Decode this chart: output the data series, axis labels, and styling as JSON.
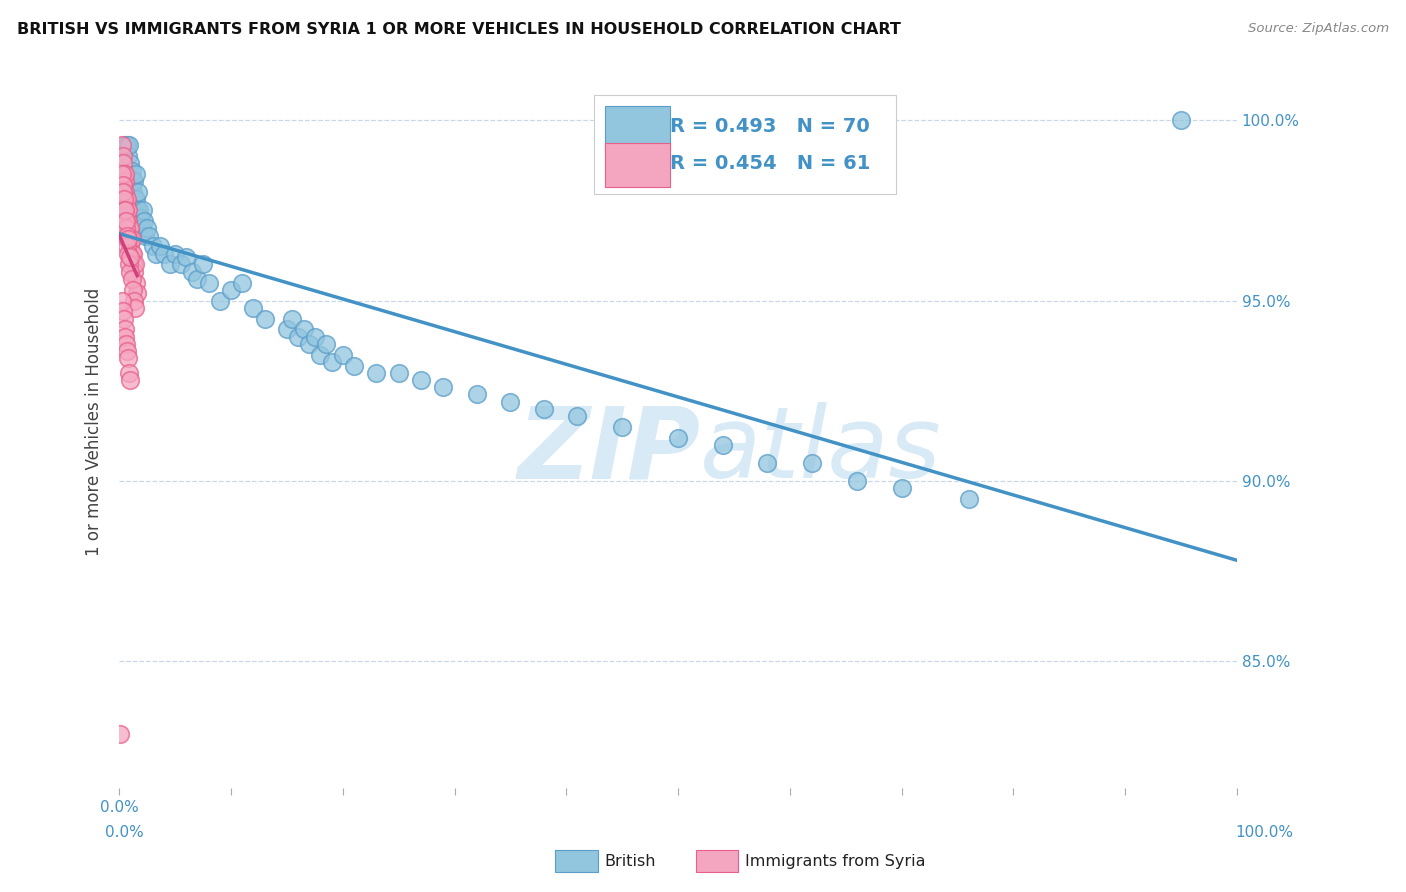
{
  "title": "BRITISH VS IMMIGRANTS FROM SYRIA 1 OR MORE VEHICLES IN HOUSEHOLD CORRELATION CHART",
  "source": "Source: ZipAtlas.com",
  "ylabel": "1 or more Vehicles in Household",
  "ytick_values": [
    0.85,
    0.9,
    0.95,
    1.0
  ],
  "ytick_labels": [
    "85.0%",
    "90.0%",
    "95.0%",
    "100.0%"
  ],
  "xtick_values": [
    0.0,
    0.1,
    0.2,
    0.3,
    0.4,
    0.5,
    0.6,
    0.7,
    0.8,
    0.9,
    1.0
  ],
  "xlim": [
    0.0,
    1.0
  ],
  "ylim": [
    0.815,
    1.018
  ],
  "legend_british_r": "R = 0.493",
  "legend_british_n": "N = 70",
  "legend_syria_r": "R = 0.454",
  "legend_syria_n": "N = 61",
  "british_color": "#92c5de",
  "syria_color": "#f4a6c0",
  "british_edge_color": "#5b9dc9",
  "syria_edge_color": "#e8608a",
  "british_line_color": "#4292c6",
  "syria_line_color": "#d0407a",
  "grid_color": "#c8d8e8",
  "watermark_color": "#d8eaf5",
  "legend_text_color": "#4292c6",
  "tick_label_color": "#4292c6",
  "british_x": [
    0.005,
    0.007,
    0.008,
    0.009,
    0.01,
    0.01,
    0.011,
    0.011,
    0.012,
    0.012,
    0.013,
    0.014,
    0.014,
    0.015,
    0.015,
    0.016,
    0.017,
    0.018,
    0.019,
    0.02,
    0.021,
    0.022,
    0.023,
    0.025,
    0.027,
    0.03,
    0.033,
    0.036,
    0.04,
    0.045,
    0.05,
    0.055,
    0.06,
    0.065,
    0.07,
    0.075,
    0.08,
    0.09,
    0.1,
    0.11,
    0.12,
    0.13,
    0.15,
    0.155,
    0.16,
    0.165,
    0.17,
    0.175,
    0.18,
    0.185,
    0.19,
    0.2,
    0.21,
    0.23,
    0.25,
    0.27,
    0.29,
    0.32,
    0.35,
    0.38,
    0.41,
    0.45,
    0.5,
    0.54,
    0.58,
    0.62,
    0.66,
    0.7,
    0.76,
    0.95
  ],
  "british_y": [
    0.993,
    0.993,
    0.99,
    0.993,
    0.988,
    0.985,
    0.983,
    0.986,
    0.98,
    0.978,
    0.983,
    0.978,
    0.975,
    0.978,
    0.985,
    0.975,
    0.98,
    0.975,
    0.973,
    0.97,
    0.975,
    0.972,
    0.968,
    0.97,
    0.968,
    0.965,
    0.963,
    0.965,
    0.963,
    0.96,
    0.963,
    0.96,
    0.962,
    0.958,
    0.956,
    0.96,
    0.955,
    0.95,
    0.953,
    0.955,
    0.948,
    0.945,
    0.942,
    0.945,
    0.94,
    0.942,
    0.938,
    0.94,
    0.935,
    0.938,
    0.933,
    0.935,
    0.932,
    0.93,
    0.93,
    0.928,
    0.926,
    0.924,
    0.922,
    0.92,
    0.918,
    0.915,
    0.912,
    0.91,
    0.905,
    0.905,
    0.9,
    0.898,
    0.895,
    1.0
  ],
  "syria_x": [
    0.002,
    0.003,
    0.003,
    0.004,
    0.004,
    0.005,
    0.005,
    0.005,
    0.006,
    0.006,
    0.006,
    0.007,
    0.007,
    0.007,
    0.008,
    0.008,
    0.008,
    0.009,
    0.009,
    0.01,
    0.01,
    0.01,
    0.011,
    0.011,
    0.012,
    0.012,
    0.013,
    0.014,
    0.015,
    0.016,
    0.002,
    0.003,
    0.003,
    0.004,
    0.004,
    0.005,
    0.005,
    0.006,
    0.006,
    0.007,
    0.007,
    0.008,
    0.008,
    0.009,
    0.01,
    0.01,
    0.011,
    0.012,
    0.013,
    0.014,
    0.002,
    0.003,
    0.004,
    0.005,
    0.005,
    0.006,
    0.007,
    0.008,
    0.009,
    0.01,
    0.001
  ],
  "syria_y": [
    0.993,
    0.99,
    0.988,
    0.985,
    0.983,
    0.983,
    0.98,
    0.985,
    0.978,
    0.975,
    0.978,
    0.975,
    0.973,
    0.978,
    0.972,
    0.97,
    0.975,
    0.97,
    0.968,
    0.967,
    0.965,
    0.97,
    0.963,
    0.967,
    0.96,
    0.963,
    0.958,
    0.96,
    0.955,
    0.952,
    0.985,
    0.982,
    0.98,
    0.978,
    0.975,
    0.972,
    0.975,
    0.97,
    0.972,
    0.968,
    0.965,
    0.963,
    0.967,
    0.96,
    0.958,
    0.962,
    0.956,
    0.953,
    0.95,
    0.948,
    0.95,
    0.947,
    0.945,
    0.942,
    0.94,
    0.938,
    0.936,
    0.934,
    0.93,
    0.928,
    0.83
  ]
}
